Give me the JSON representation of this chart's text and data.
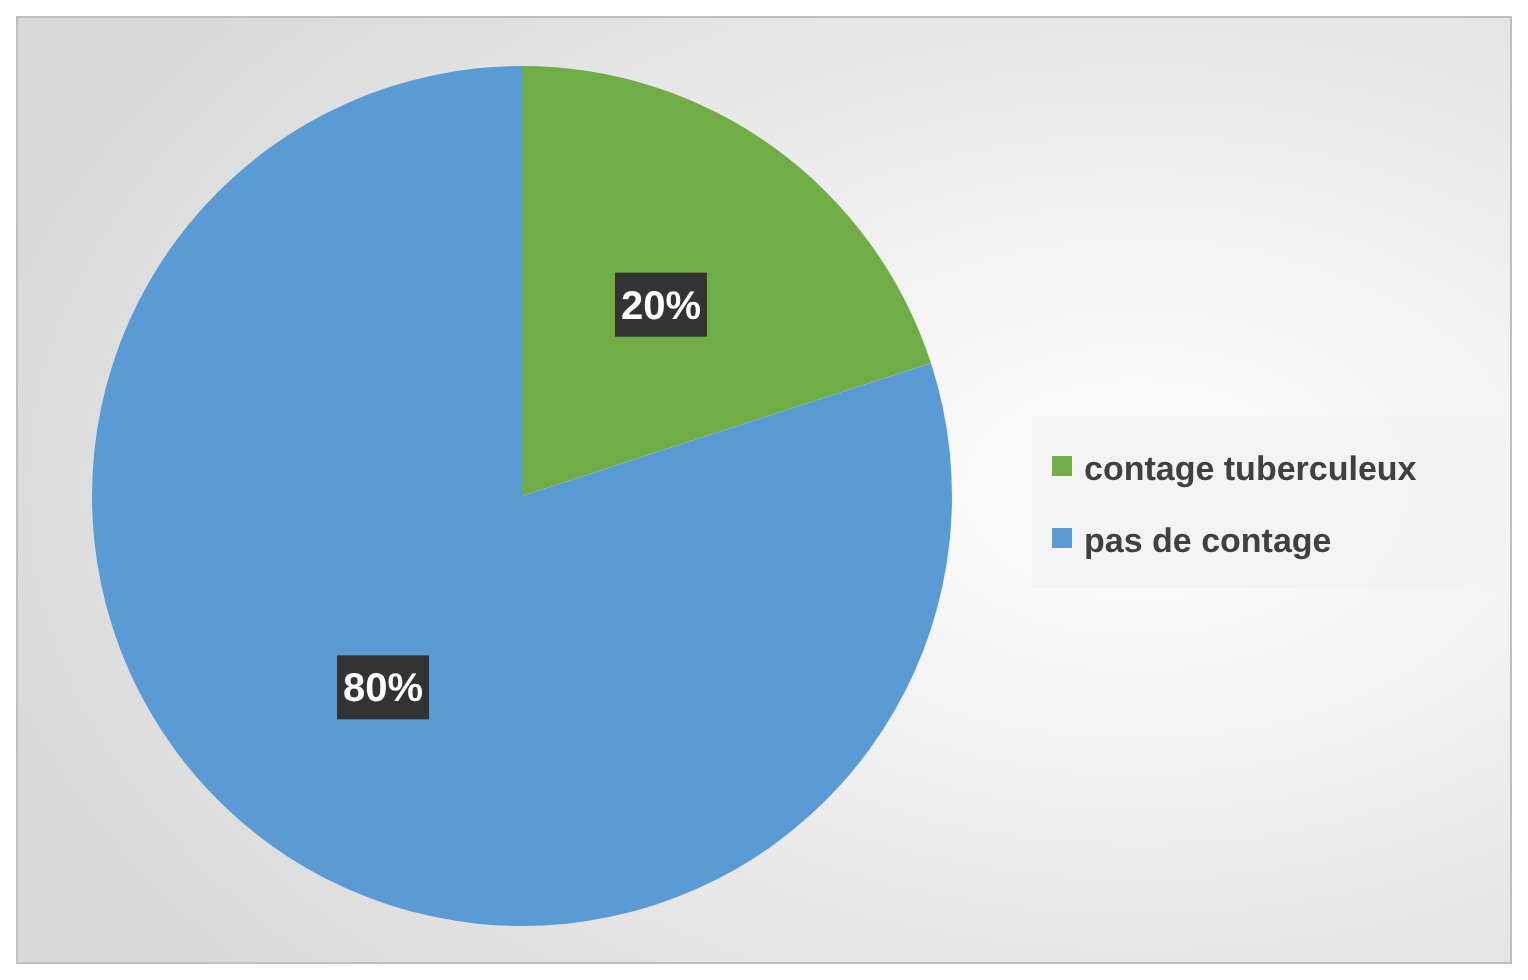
{
  "chart_data": {
    "type": "pie",
    "categories": [
      "contage tuberculeux",
      "pas de contage"
    ],
    "values": [
      20,
      80
    ],
    "colors": [
      "#70ad47",
      "#5b9bd5"
    ],
    "data_labels": true,
    "value_labels": [
      "20%",
      "80%"
    ],
    "legend": "right"
  }
}
